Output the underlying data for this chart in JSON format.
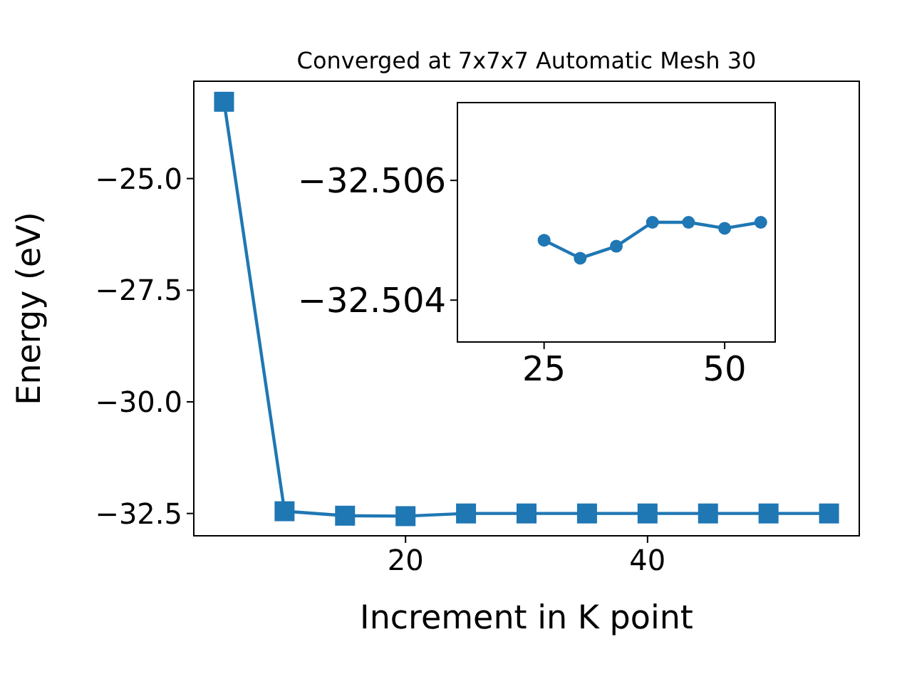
{
  "chart_data": [
    {
      "type": "line",
      "title": "Converged at 7x7x7 Automatic Mesh 30",
      "xlabel": "Increment in K point",
      "ylabel": "Energy (eV)",
      "x": [
        5,
        10,
        15,
        20,
        25,
        30,
        35,
        40,
        45,
        50,
        55
      ],
      "series": [
        {
          "color": "#1f77b4",
          "values": [
            -23.28,
            -32.45,
            -32.55,
            -32.56,
            -32.5,
            -32.5,
            -32.5,
            -32.5,
            -32.5,
            -32.5,
            -32.5
          ]
        }
      ],
      "xlim": [
        2.5,
        57.5
      ],
      "ylim": [
        -33.0,
        -22.82
      ],
      "xticks": [
        20,
        40
      ],
      "yticks": [
        {
          "value": -25,
          "label": "−25.0"
        },
        {
          "value": -27.5,
          "label": "−27.5"
        },
        {
          "value": -30,
          "label": "−30.0"
        },
        {
          "value": -32.5,
          "label": "−32.5"
        }
      ],
      "marker": "square",
      "grid": false
    },
    {
      "type": "line",
      "x": [
        25,
        30,
        35,
        40,
        45,
        50,
        55
      ],
      "series": [
        {
          "color": "#1f77b4",
          "values": [
            -32.505,
            -32.5047,
            -32.5049,
            -32.5053,
            -32.5053,
            -32.5052,
            -32.5053
          ]
        }
      ],
      "xlim": [
        13,
        57
      ],
      "ylim": [
        -32.5033,
        -32.5073
      ],
      "xticks": [
        25,
        50
      ],
      "yticks": [
        {
          "value": -32.506,
          "label": "−32.506"
        },
        {
          "value": -32.504,
          "label": "−32.504"
        }
      ],
      "marker": "circle",
      "grid": false
    }
  ]
}
